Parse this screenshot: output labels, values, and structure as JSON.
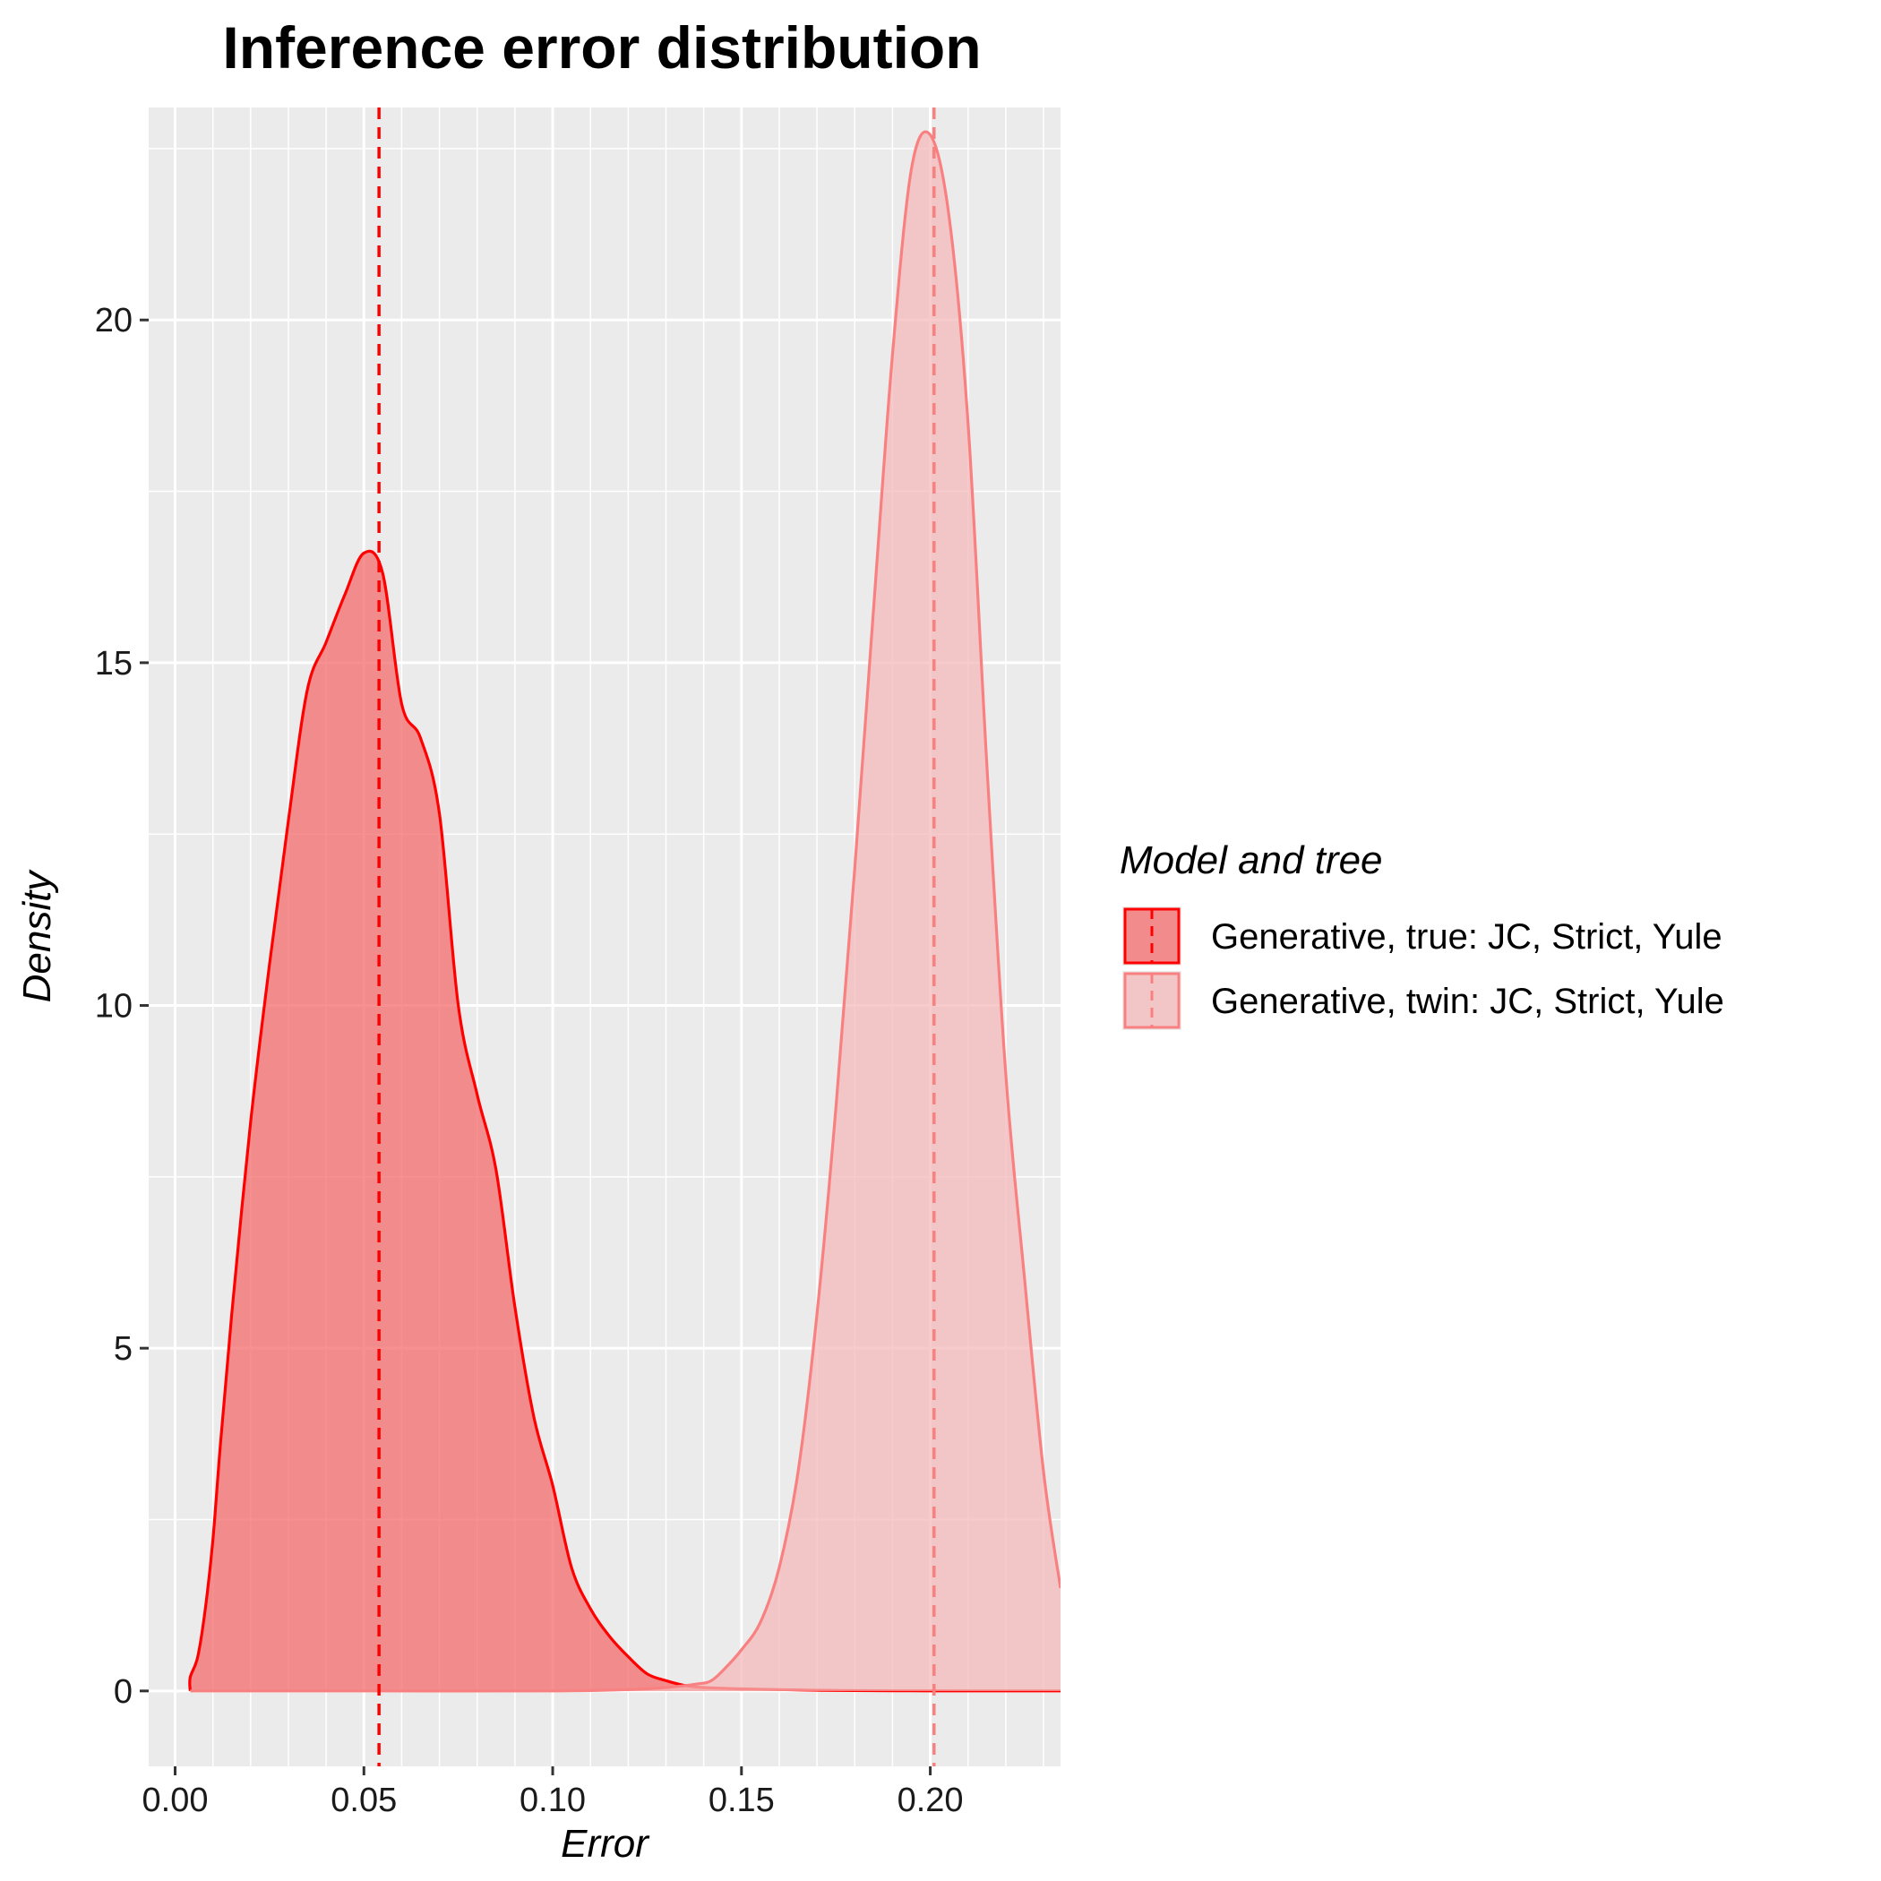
{
  "chart_data": {
    "type": "area",
    "title": "Inference error distribution",
    "xlabel": "Error",
    "ylabel": "Density",
    "xlim": [
      -0.007,
      0.2345
    ],
    "ylim": [
      -1.1,
      23.1
    ],
    "x_ticks": [
      0.0,
      0.05,
      0.1,
      0.15,
      0.2
    ],
    "x_tick_labels": [
      "0.00",
      "0.05",
      "0.10",
      "0.15",
      "0.20"
    ],
    "y_ticks": [
      0,
      5,
      10,
      15,
      20
    ],
    "y_tick_labels": [
      "0",
      "5",
      "10",
      "15",
      "20"
    ],
    "grid": true,
    "legend": {
      "title": "Model and tree",
      "placement": "right"
    },
    "series": [
      {
        "name": "Generative, true: JC, Strict, Yule",
        "color": "#ff0000",
        "fill": "#f46c6c",
        "fill_opacity": 0.75,
        "mean": 0.054,
        "x": [
          0.004,
          0.004,
          0.006,
          0.008,
          0.01,
          0.012,
          0.015,
          0.02,
          0.025,
          0.03,
          0.035,
          0.04,
          0.045,
          0.05,
          0.055,
          0.06,
          0.065,
          0.07,
          0.075,
          0.08,
          0.085,
          0.09,
          0.095,
          0.1,
          0.105,
          0.11,
          0.115,
          0.12,
          0.125,
          0.13,
          0.135,
          0.14,
          0.15,
          0.16,
          0.17,
          0.18,
          0.19,
          0.2,
          0.21,
          0.22,
          0.2345
        ],
        "y": [
          0.0,
          0.2,
          0.5,
          1.2,
          2.2,
          3.6,
          5.5,
          8.3,
          10.6,
          12.7,
          14.6,
          15.3,
          16.0,
          16.6,
          16.3,
          14.4,
          13.9,
          12.8,
          10.0,
          8.7,
          7.6,
          5.6,
          4.0,
          3.0,
          1.8,
          1.2,
          0.8,
          0.5,
          0.25,
          0.15,
          0.08,
          0.05,
          0.03,
          0.02,
          0.01,
          0.005,
          0.002,
          0.001,
          0.0,
          0.0,
          0.0
        ]
      },
      {
        "name": "Generative, twin: JC, Strict, Yule",
        "color": "#f98080",
        "fill": "#f4baba",
        "fill_opacity": 0.75,
        "mean": 0.201,
        "x": [
          0.004,
          0.05,
          0.1,
          0.12,
          0.13,
          0.138,
          0.142,
          0.146,
          0.15,
          0.155,
          0.16,
          0.165,
          0.17,
          0.175,
          0.18,
          0.185,
          0.19,
          0.195,
          0.2,
          0.205,
          0.21,
          0.215,
          0.22,
          0.225,
          0.23,
          0.2345
        ],
        "y": [
          0.0,
          0.0,
          0.0,
          0.02,
          0.05,
          0.1,
          0.15,
          0.35,
          0.6,
          1.0,
          1.8,
          3.2,
          5.5,
          8.5,
          12.0,
          15.8,
          19.5,
          22.2,
          22.7,
          21.5,
          18.5,
          13.5,
          9.0,
          6.0,
          3.2,
          1.5
        ]
      }
    ]
  }
}
